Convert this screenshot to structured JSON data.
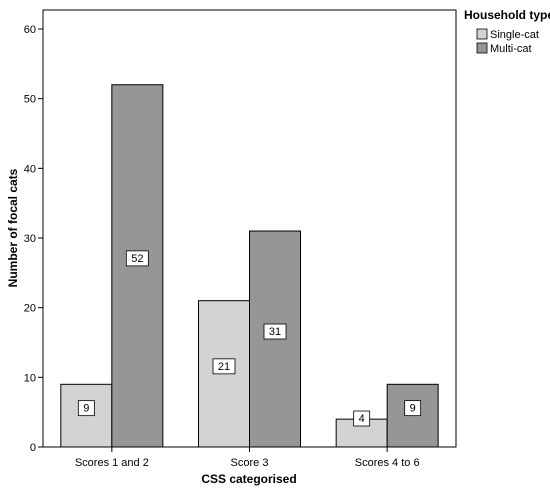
{
  "chart_data": {
    "type": "bar",
    "categories": [
      "Scores 1 and 2",
      "Score 3",
      "Scores 4 to 6"
    ],
    "series": [
      {
        "name": "Single-cat",
        "values": [
          9,
          21,
          4
        ],
        "color": "#d3d3d3"
      },
      {
        "name": "Multi-cat",
        "values": [
          52,
          31,
          9
        ],
        "color": "#969696"
      }
    ],
    "title": "",
    "xlabel": "CSS categorised",
    "ylabel": "Number of focal cats",
    "ylim": [
      0,
      60
    ],
    "yticks": [
      "0",
      "10",
      "20",
      "30",
      "40",
      "50",
      "60"
    ],
    "grid": false,
    "legend": {
      "title": "Household type",
      "position": "right"
    },
    "data_labels": true
  }
}
